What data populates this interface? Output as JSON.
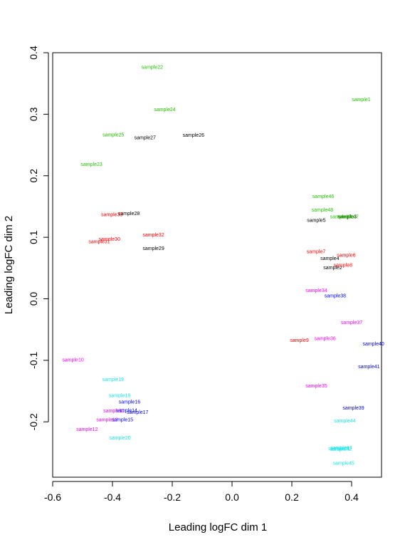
{
  "chart_data": {
    "type": "scatter",
    "xlabel": "Leading logFC dim 1",
    "ylabel": "Leading logFC dim 2",
    "xlim": [
      -0.6,
      0.5
    ],
    "ylim": [
      -0.29,
      0.4
    ],
    "xticks": [
      "-0.6",
      "-0.4",
      "-0.2",
      "0.0",
      "0.2",
      "0.4"
    ],
    "xtick_values": [
      -0.6,
      -0.4,
      -0.2,
      0.0,
      0.2,
      0.4
    ],
    "yticks": [
      "-0.2",
      "-0.1",
      "0.0",
      "0.1",
      "0.2",
      "0.3",
      "0.4"
    ],
    "ytick_values": [
      -0.2,
      -0.1,
      0.0,
      0.1,
      0.2,
      0.3,
      0.4
    ],
    "grid": false,
    "colors": {
      "black": "#000000",
      "red": "#ff0000",
      "green": "#22c200",
      "blue": "#0000ff",
      "cyan": "#19e5e5",
      "magenta": "#ff00ff"
    },
    "points": [
      {
        "label": "sample1",
        "x": 0.432,
        "y": 0.324,
        "color": "green"
      },
      {
        "label": "sample2",
        "x": 0.337,
        "y": 0.051,
        "color": "black"
      },
      {
        "label": "sample3",
        "x": 0.385,
        "y": 0.134,
        "color": "black"
      },
      {
        "label": "sample4",
        "x": 0.327,
        "y": 0.066,
        "color": "black"
      },
      {
        "label": "sample5",
        "x": 0.282,
        "y": 0.128,
        "color": "black"
      },
      {
        "label": "sample6",
        "x": 0.382,
        "y": 0.071,
        "color": "red"
      },
      {
        "label": "sample7",
        "x": 0.281,
        "y": 0.077,
        "color": "red"
      },
      {
        "label": "sample8",
        "x": 0.371,
        "y": 0.055,
        "color": "red"
      },
      {
        "label": "sample9",
        "x": 0.225,
        "y": -0.067,
        "color": "red"
      },
      {
        "label": "sample10",
        "x": -0.532,
        "y": -0.099,
        "color": "magenta"
      },
      {
        "label": "sample11",
        "x": -0.395,
        "y": -0.182,
        "color": "magenta"
      },
      {
        "label": "sample12",
        "x": -0.485,
        "y": -0.212,
        "color": "magenta"
      },
      {
        "label": "sample13",
        "x": -0.418,
        "y": -0.196,
        "color": "magenta"
      },
      {
        "label": "sample14",
        "x": -0.353,
        "y": -0.181,
        "color": "blue"
      },
      {
        "label": "sample15",
        "x": -0.367,
        "y": -0.196,
        "color": "blue"
      },
      {
        "label": "sample16",
        "x": -0.343,
        "y": -0.167,
        "color": "blue"
      },
      {
        "label": "sample17",
        "x": -0.316,
        "y": -0.184,
        "color": "blue"
      },
      {
        "label": "sample18",
        "x": -0.376,
        "y": -0.157,
        "color": "cyan"
      },
      {
        "label": "sample19",
        "x": -0.398,
        "y": -0.131,
        "color": "cyan"
      },
      {
        "label": "sample20",
        "x": -0.375,
        "y": -0.226,
        "color": "cyan"
      },
      {
        "label": "sample21",
        "x": 0.358,
        "y": -0.243,
        "color": "cyan"
      },
      {
        "label": "sample22",
        "x": -0.267,
        "y": 0.377,
        "color": "green"
      },
      {
        "label": "sample23",
        "x": -0.47,
        "y": 0.219,
        "color": "green"
      },
      {
        "label": "sample24",
        "x": -0.225,
        "y": 0.308,
        "color": "green"
      },
      {
        "label": "sample25",
        "x": -0.397,
        "y": 0.267,
        "color": "green"
      },
      {
        "label": "sample26",
        "x": -0.129,
        "y": 0.266,
        "color": "black"
      },
      {
        "label": "sample27",
        "x": -0.291,
        "y": 0.262,
        "color": "black"
      },
      {
        "label": "sample28",
        "x": -0.345,
        "y": 0.139,
        "color": "black"
      },
      {
        "label": "sample29",
        "x": -0.263,
        "y": 0.082,
        "color": "black"
      },
      {
        "label": "sample30",
        "x": -0.41,
        "y": 0.097,
        "color": "red"
      },
      {
        "label": "sample31",
        "x": -0.444,
        "y": 0.093,
        "color": "red"
      },
      {
        "label": "sample32",
        "x": -0.263,
        "y": 0.104,
        "color": "red"
      },
      {
        "label": "sample33",
        "x": -0.402,
        "y": 0.137,
        "color": "red"
      },
      {
        "label": "sample34",
        "x": 0.282,
        "y": 0.014,
        "color": "magenta"
      },
      {
        "label": "sample35",
        "x": 0.282,
        "y": -0.141,
        "color": "magenta"
      },
      {
        "label": "sample36",
        "x": 0.311,
        "y": -0.064,
        "color": "magenta"
      },
      {
        "label": "sample37",
        "x": 0.4,
        "y": -0.038,
        "color": "magenta"
      },
      {
        "label": "sample38",
        "x": 0.345,
        "y": 0.005,
        "color": "blue"
      },
      {
        "label": "sample39",
        "x": 0.406,
        "y": -0.177,
        "color": "blue"
      },
      {
        "label": "sample40",
        "x": 0.473,
        "y": -0.073,
        "color": "blue"
      },
      {
        "label": "sample41",
        "x": 0.458,
        "y": -0.11,
        "color": "blue"
      },
      {
        "label": "sample42",
        "x": 0.364,
        "y": -0.244,
        "color": "cyan"
      },
      {
        "label": "sample43",
        "x": 0.365,
        "y": -0.242,
        "color": "cyan"
      },
      {
        "label": "sample44",
        "x": 0.377,
        "y": -0.198,
        "color": "cyan"
      },
      {
        "label": "sample45",
        "x": 0.373,
        "y": -0.267,
        "color": "cyan"
      },
      {
        "label": "sample46",
        "x": 0.305,
        "y": 0.167,
        "color": "green"
      },
      {
        "label": "sample47",
        "x": 0.387,
        "y": 0.134,
        "color": "green"
      },
      {
        "label": "sample48",
        "x": 0.302,
        "y": 0.145,
        "color": "green"
      },
      {
        "label": "sample49",
        "x": 0.364,
        "y": 0.134,
        "color": "green"
      }
    ]
  }
}
